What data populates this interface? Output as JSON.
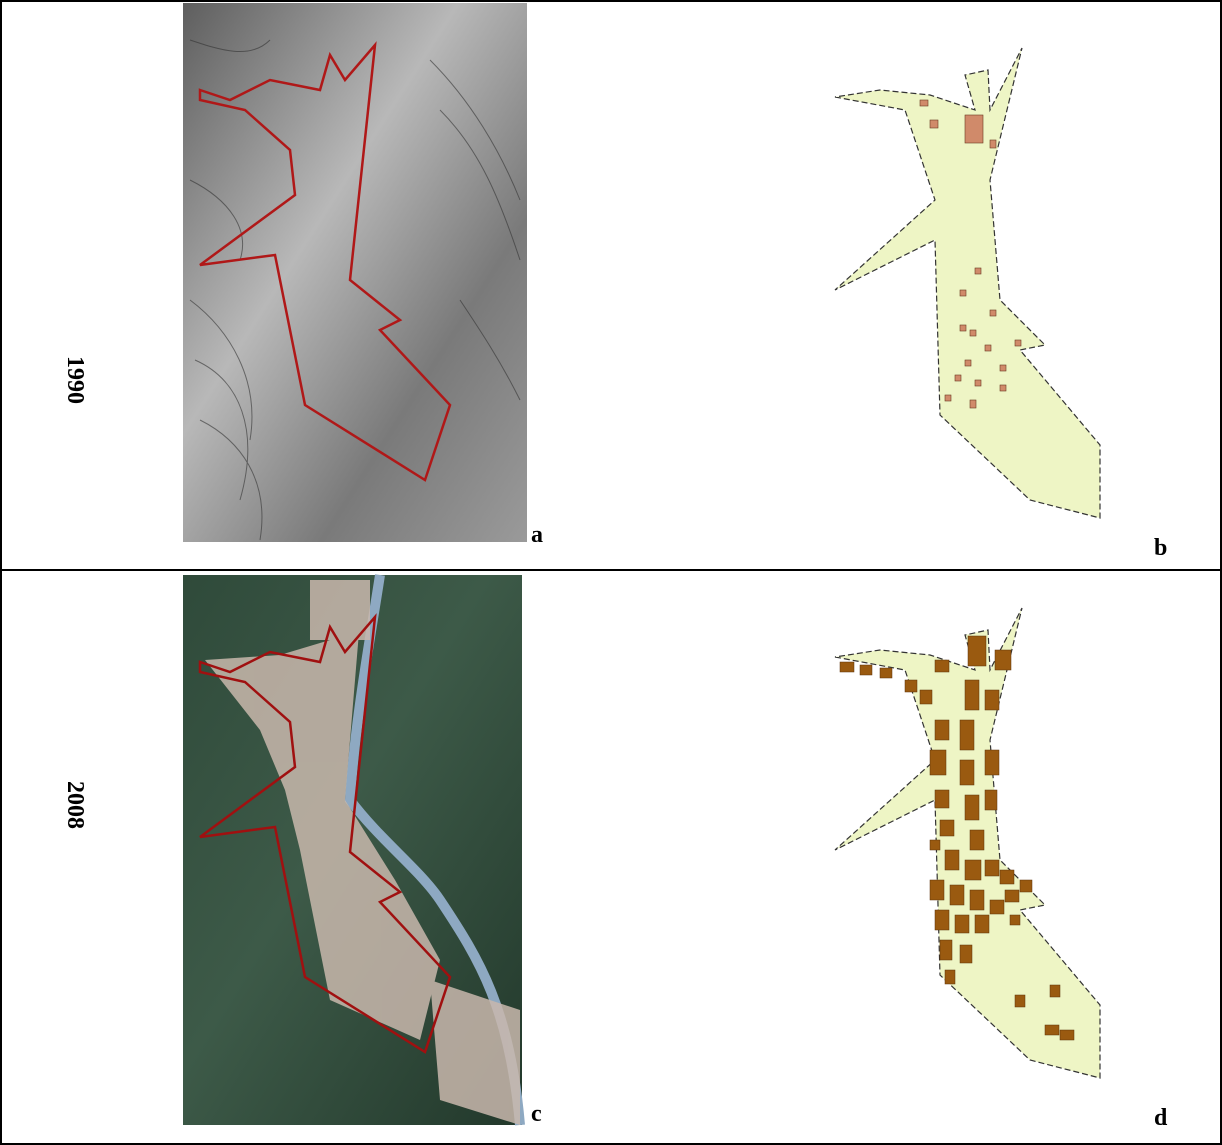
{
  "rows": [
    {
      "year": "1990",
      "image_label": "a",
      "map_label": "b"
    },
    {
      "year": "2008",
      "image_label": "c",
      "map_label": "d"
    }
  ]
}
